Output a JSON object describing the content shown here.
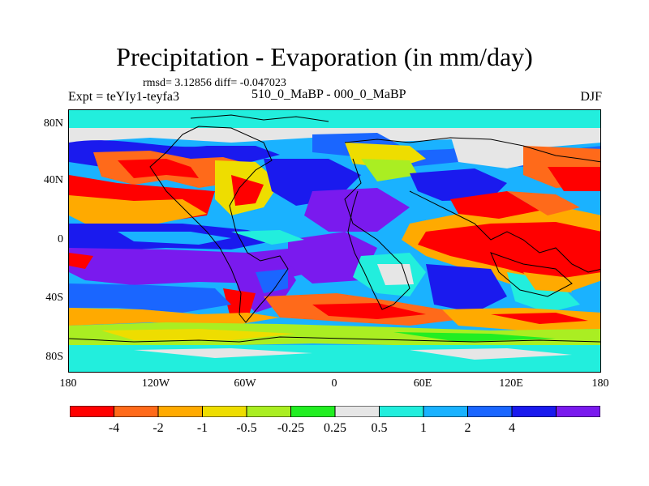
{
  "title": "Precipitation - Evaporation (in mm/day)",
  "stats": "rmsd= 3.12856 diff= -0.047023",
  "experiment": "Expt = teYIy1-teyfa3",
  "difference_label": "510_0_MaBP - 000_0_MaBP",
  "season": "DJF",
  "y_ticks": [
    "80N",
    "40N",
    "0",
    "40S",
    "80S"
  ],
  "x_ticks": [
    "180",
    "120W",
    "60W",
    "0",
    "60E",
    "120E",
    "180"
  ],
  "colorbar": {
    "colors": [
      "#ff0000",
      "#ff6a1a",
      "#ffaa00",
      "#eedd00",
      "#aaee22",
      "#22ee22",
      "#e6e6e6",
      "#22eedd",
      "#1ab2ff",
      "#1a66ff",
      "#1a1aee",
      "#7a1aee"
    ],
    "labels": [
      "-4",
      "-2",
      "-1",
      "-0.5",
      "-0.25",
      "0.25",
      "0.5",
      "1",
      "2",
      "4"
    ]
  }
}
